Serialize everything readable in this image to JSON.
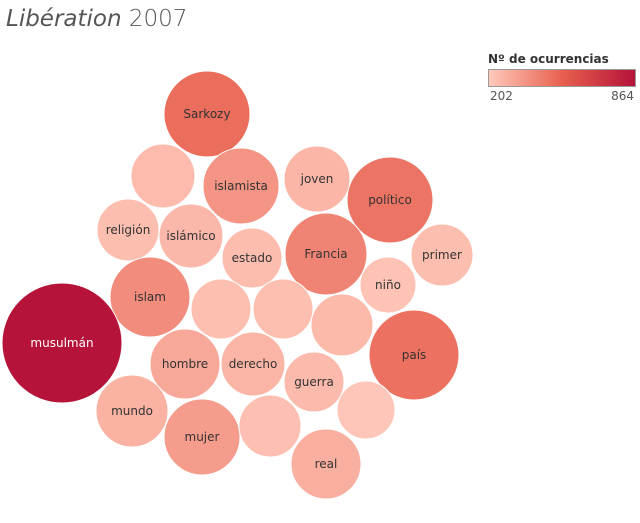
{
  "title": {
    "italic": "Libération",
    "year": "2007"
  },
  "legend": {
    "title": "Nº de ocurrencias",
    "min_label": "202",
    "max_label": "864"
  },
  "colors": {
    "low": "#ffc9bb",
    "mid": "#e8604f",
    "high": "#b5133a"
  },
  "chart_data": {
    "type": "packed-bubble",
    "measure": "Nº de ocurrencias",
    "color_range": [
      202,
      864
    ],
    "bubbles": [
      {
        "label": "Sarkozy",
        "value": 490
      },
      {
        "label": "",
        "value": 245
      },
      {
        "label": "islamista",
        "value": 370
      },
      {
        "label": "joven",
        "value": 262
      },
      {
        "label": "político",
        "value": 470
      },
      {
        "label": "religión",
        "value": 238
      },
      {
        "label": "islámico",
        "value": 255
      },
      {
        "label": "estado",
        "value": 240
      },
      {
        "label": "Francia",
        "value": 420
      },
      {
        "label": "primer",
        "value": 238
      },
      {
        "label": "islam",
        "value": 395
      },
      {
        "label": "",
        "value": 235
      },
      {
        "label": "",
        "value": 235
      },
      {
        "label": "niño",
        "value": 220
      },
      {
        "label": "",
        "value": 250
      },
      {
        "label": "musulmán",
        "value": 864
      },
      {
        "label": "hombre",
        "value": 305
      },
      {
        "label": "derecho",
        "value": 265
      },
      {
        "label": "país",
        "value": 480
      },
      {
        "label": "guerra",
        "value": 248
      },
      {
        "label": "mundo",
        "value": 275
      },
      {
        "label": "mujer",
        "value": 345
      },
      {
        "label": "",
        "value": 232
      },
      {
        "label": "",
        "value": 212
      },
      {
        "label": "real",
        "value": 285
      }
    ]
  }
}
